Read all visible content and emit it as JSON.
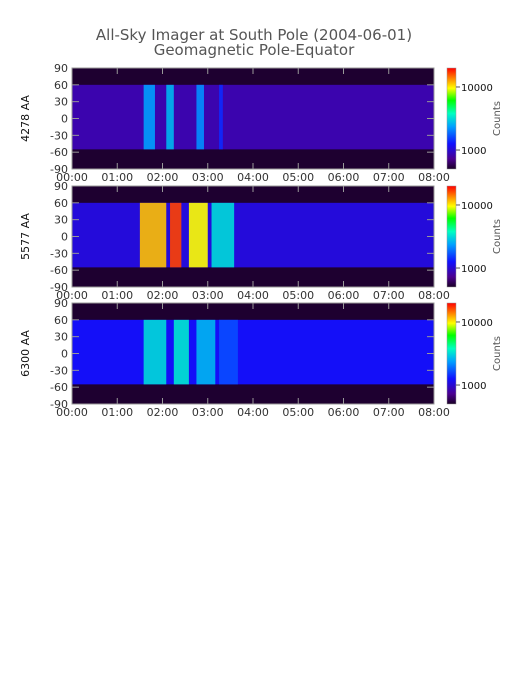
{
  "title_line1": "All-Sky Imager at South Pole (2004-06-01)",
  "title_line2": "Geomagnetic Pole-Equator",
  "chart_data": [
    {
      "type": "heatmap",
      "ylabel": "4278 AA",
      "x_ticks": [
        "00:00",
        "01:00",
        "02:00",
        "03:00",
        "04:00",
        "05:00",
        "06:00",
        "07:00",
        "08:00"
      ],
      "y_ticks": [
        "90",
        "60",
        "30",
        "0",
        "-30",
        "-60",
        "-90"
      ],
      "xlim": [
        "00:00",
        "08:00"
      ],
      "ylim": [
        -90,
        90
      ],
      "colorbar_label": "Counts",
      "colorbar_ticks": [
        "10000",
        "1000"
      ],
      "colorbar_range": [
        500,
        20000
      ],
      "colorbar_scale": "log",
      "active_lat_range": [
        -55,
        60
      ],
      "bursts": [
        {
          "start": "01:35",
          "end": "01:50",
          "level": 0.42
        },
        {
          "start": "02:05",
          "end": "02:15",
          "level": 0.45
        },
        {
          "start": "02:45",
          "end": "02:55",
          "level": 0.4
        },
        {
          "start": "03:15",
          "end": "03:20",
          "level": 0.28
        }
      ]
    },
    {
      "type": "heatmap",
      "ylabel": "5577 AA",
      "x_ticks": [
        "00:00",
        "01:00",
        "02:00",
        "03:00",
        "04:00",
        "05:00",
        "06:00",
        "07:00",
        "08:00"
      ],
      "y_ticks": [
        "90",
        "60",
        "30",
        "0",
        "-30",
        "-60",
        "-90"
      ],
      "xlim": [
        "00:00",
        "08:00"
      ],
      "ylim": [
        -90,
        90
      ],
      "colorbar_label": "Counts",
      "colorbar_ticks": [
        "10000",
        "1000"
      ],
      "colorbar_range": [
        500,
        20000
      ],
      "colorbar_scale": "log",
      "active_lat_range": [
        -55,
        60
      ],
      "bursts": [
        {
          "start": "01:30",
          "end": "02:05",
          "level": 0.85
        },
        {
          "start": "02:10",
          "end": "02:25",
          "level": 0.95
        },
        {
          "start": "02:35",
          "end": "03:00",
          "level": 0.8
        },
        {
          "start": "03:05",
          "end": "03:35",
          "level": 0.5
        }
      ]
    },
    {
      "type": "heatmap",
      "ylabel": "6300 AA",
      "x_ticks": [
        "00:00",
        "01:00",
        "02:00",
        "03:00",
        "04:00",
        "05:00",
        "06:00",
        "07:00",
        "08:00"
      ],
      "y_ticks": [
        "90",
        "60",
        "30",
        "0",
        "-30",
        "-60",
        "-90"
      ],
      "xlim": [
        "00:00",
        "08:00"
      ],
      "ylim": [
        -90,
        90
      ],
      "colorbar_label": "Counts",
      "colorbar_ticks": [
        "10000",
        "1000"
      ],
      "colorbar_range": [
        500,
        20000
      ],
      "colorbar_scale": "log",
      "active_lat_range": [
        -55,
        60
      ],
      "bursts": [
        {
          "start": "01:35",
          "end": "02:05",
          "level": 0.5
        },
        {
          "start": "02:15",
          "end": "02:35",
          "level": 0.52
        },
        {
          "start": "02:45",
          "end": "03:10",
          "level": 0.45
        },
        {
          "start": "03:15",
          "end": "03:40",
          "level": 0.32
        }
      ]
    }
  ]
}
